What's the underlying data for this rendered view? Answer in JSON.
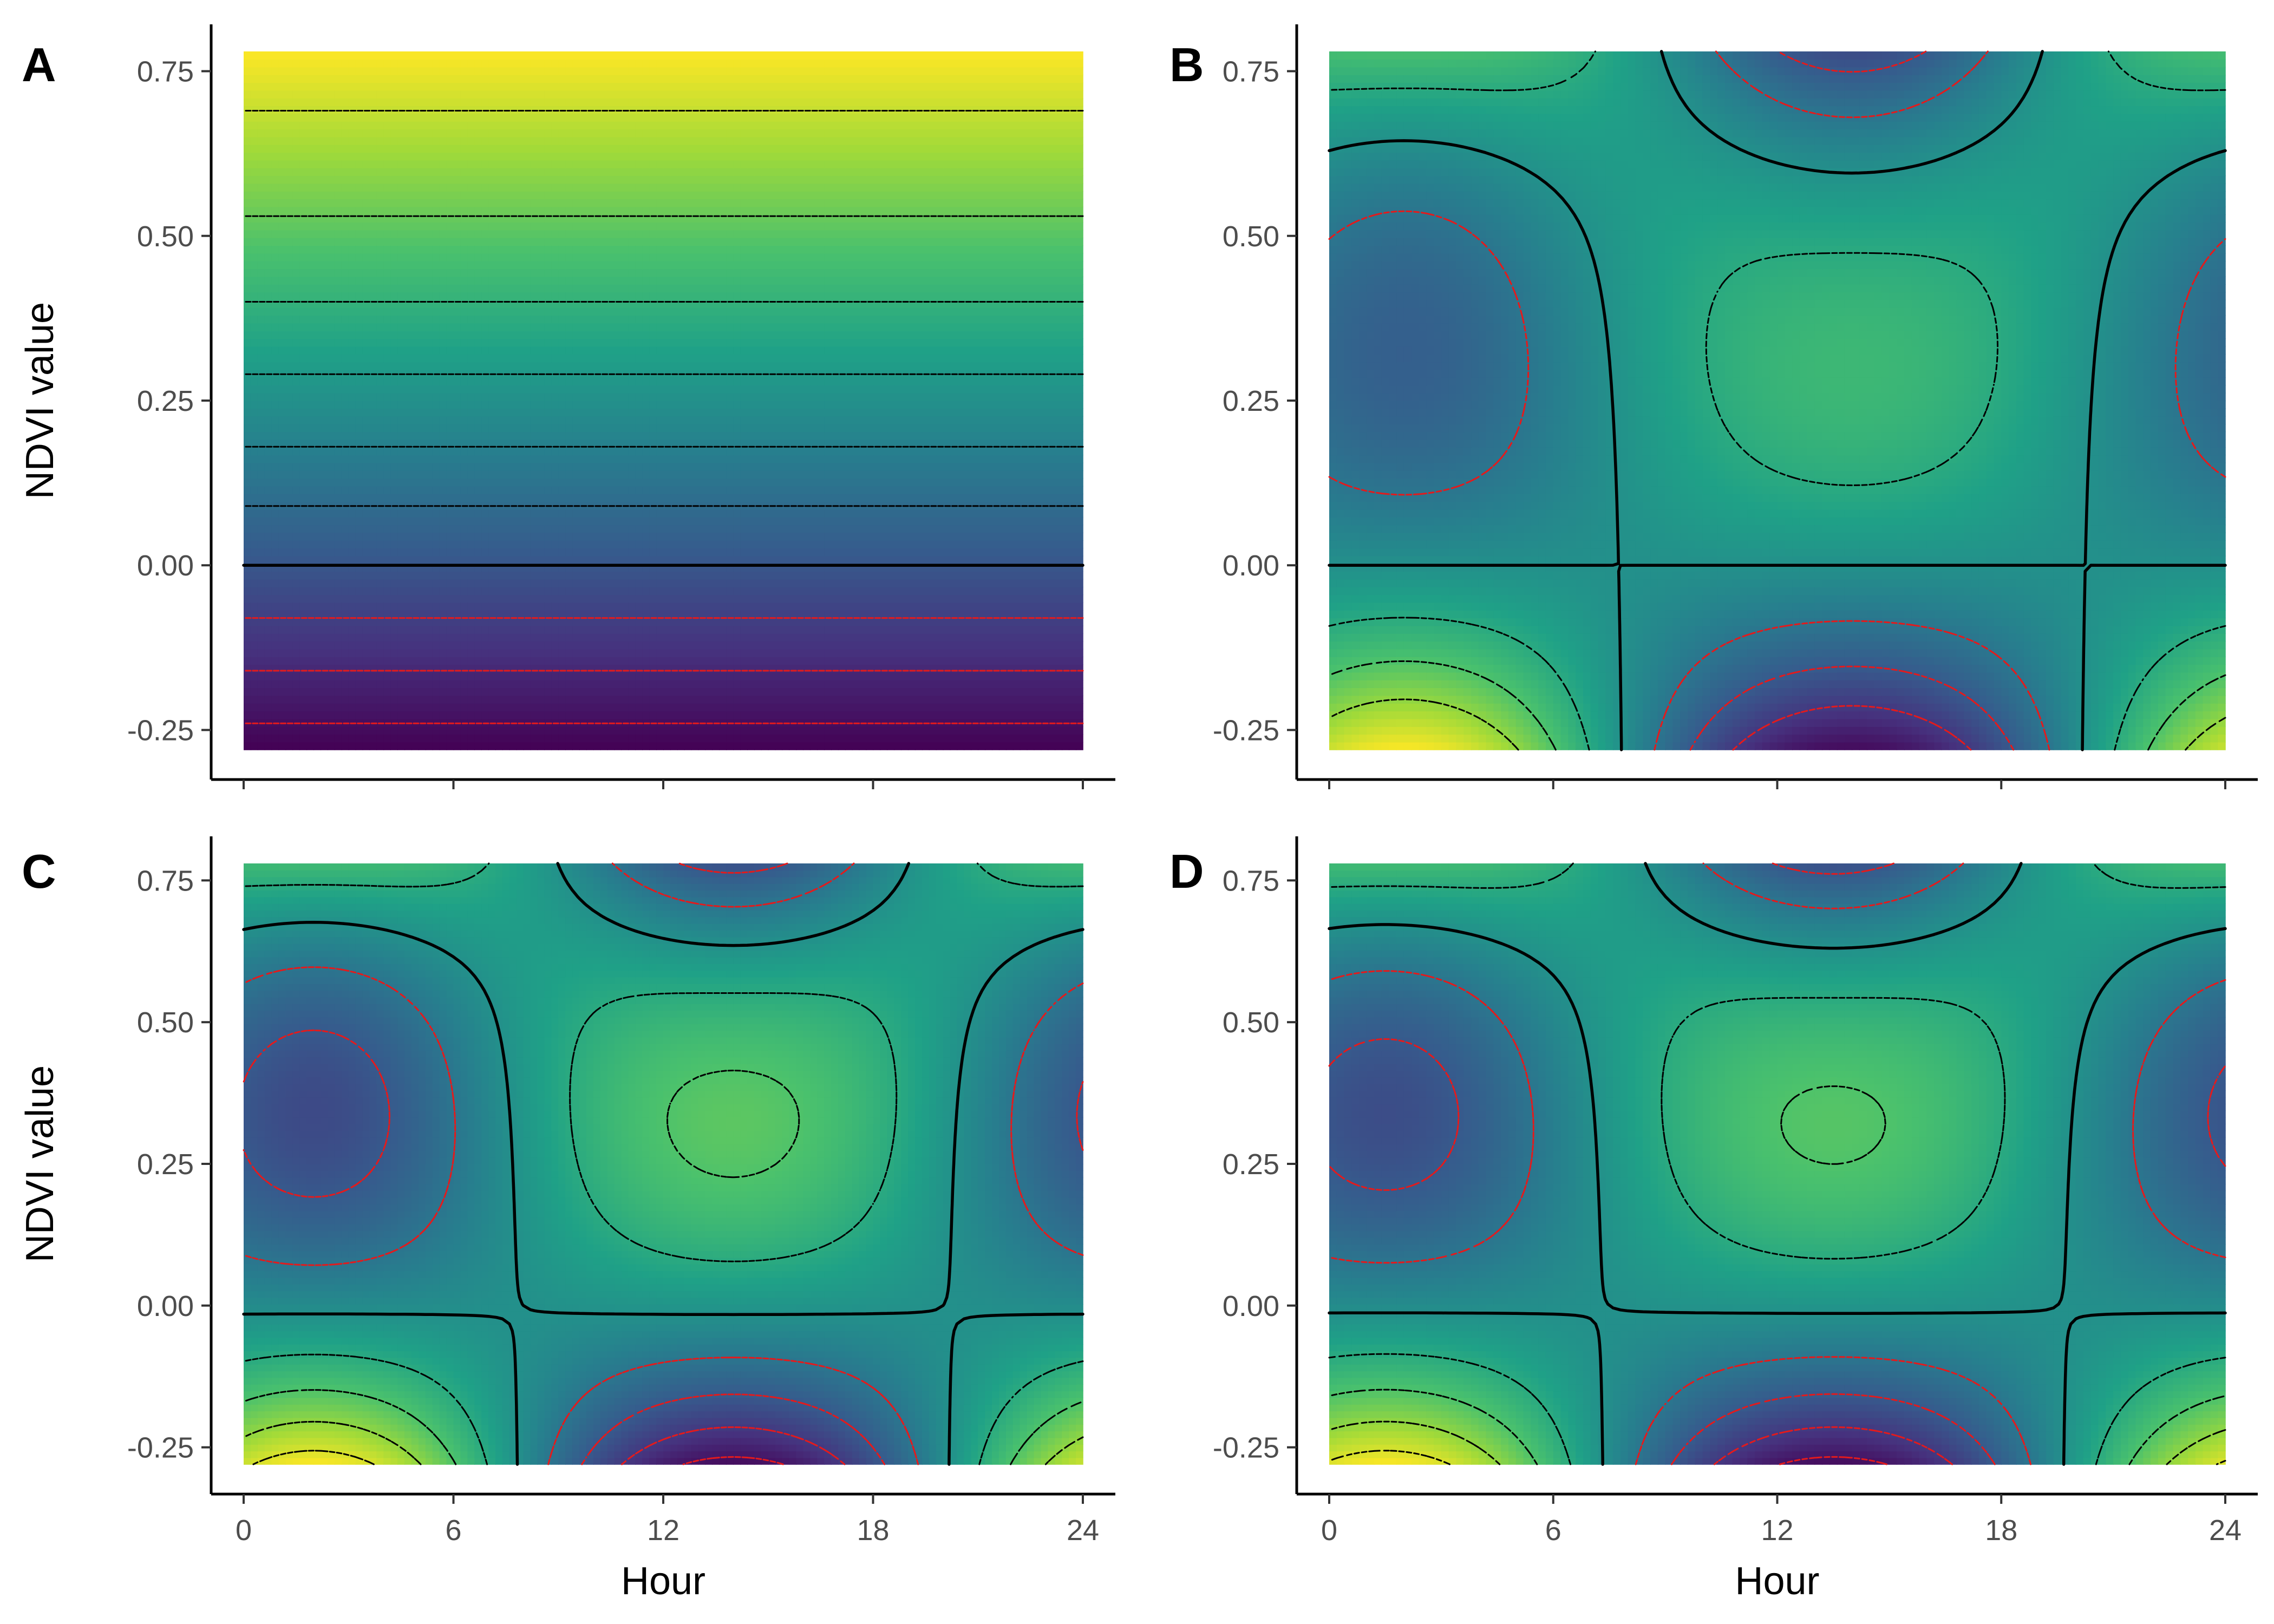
{
  "figure": {
    "layout": "2x2 grid of panels",
    "colormap": "viridis",
    "colormap_stops": [
      "#440154",
      "#46327e",
      "#365c8d",
      "#277f8e",
      "#1fa187",
      "#4ac16d",
      "#a0da39",
      "#fde725"
    ],
    "contour_colors": {
      "positive_dashed": "#000000",
      "negative_dashed": "#e41a1c",
      "zero_line": "#000000"
    },
    "shared_x_axis_title": "Hour",
    "shared_y_axis_title": "NDVI value"
  },
  "chart_data": [
    {
      "panel": "A",
      "type": "heatmap",
      "x_range": [
        0,
        24
      ],
      "y_range": [
        -0.28,
        0.78
      ],
      "x_ticks": [
        "0",
        "6",
        "12",
        "18",
        "24"
      ],
      "y_ticks": [
        "-0.25",
        "0.00",
        "0.25",
        "0.50",
        "0.75"
      ],
      "y_tick_values": [
        -0.25,
        0,
        0.25,
        0.5,
        0.75
      ],
      "x_tick_values": [
        0,
        6,
        12,
        18,
        24
      ],
      "xlabel": "",
      "ylabel": "NDVI value",
      "x_tick_labels_visible": false,
      "surface": {
        "base": 0,
        "ndvi": 1.0,
        "diurnal": 0.0,
        "interaction": 0.0
      },
      "contour_levels": [
        -0.24,
        -0.16,
        -0.08,
        0.09,
        0.18,
        0.29,
        0.4,
        0.53,
        0.69
      ],
      "zero_contour": 0
    },
    {
      "panel": "B",
      "type": "heatmap",
      "x_range": [
        0,
        24
      ],
      "y_range": [
        -0.28,
        0.78
      ],
      "x_ticks": [
        "0",
        "6",
        "12",
        "18",
        "24"
      ],
      "y_ticks": [
        "-0.25",
        "0.00",
        "0.25",
        "0.50",
        "0.75"
      ],
      "y_tick_values": [
        -0.25,
        0,
        0.25,
        0.5,
        0.75
      ],
      "x_tick_values": [
        0,
        6,
        12,
        18,
        24
      ],
      "xlabel": "",
      "ylabel": "",
      "x_tick_labels_visible": false,
      "surface": {
        "base": 0,
        "ndvi": 0.0,
        "diurnal": 0.0,
        "interaction": 1.0,
        "peak_hour": 14
      },
      "contour_levels": [
        -0.3,
        -0.2,
        -0.1,
        0.1,
        0.2,
        0.3
      ],
      "zero_contour": 0
    },
    {
      "panel": "C",
      "type": "heatmap",
      "x_range": [
        0,
        24
      ],
      "y_range": [
        -0.28,
        0.78
      ],
      "x_ticks": [
        "0",
        "6",
        "12",
        "18",
        "24"
      ],
      "y_ticks": [
        "-0.25",
        "0.00",
        "0.25",
        "0.50",
        "0.75"
      ],
      "y_tick_values": [
        -0.25,
        0,
        0.25,
        0.5,
        0.75
      ],
      "x_tick_values": [
        0,
        6,
        12,
        18,
        24
      ],
      "xlabel": "Hour",
      "ylabel": "NDVI value",
      "x_tick_labels_visible": true,
      "surface": {
        "base": 0,
        "ndvi": 0.0,
        "diurnal": 0.35,
        "interaction": 1.0,
        "peak_hour": 14
      },
      "contour_levels": [
        -0.4,
        -0.3,
        -0.2,
        -0.1,
        0.1,
        0.2,
        0.3,
        0.4
      ],
      "zero_contour": 0
    },
    {
      "panel": "D",
      "type": "heatmap",
      "x_range": [
        0,
        24
      ],
      "y_range": [
        -0.28,
        0.78
      ],
      "x_ticks": [
        "0",
        "6",
        "12",
        "18",
        "24"
      ],
      "y_ticks": [
        "-0.25",
        "0.00",
        "0.25",
        "0.50",
        "0.75"
      ],
      "y_tick_values": [
        -0.25,
        0,
        0.25,
        0.5,
        0.75
      ],
      "x_tick_values": [
        0,
        6,
        12,
        18,
        24
      ],
      "xlabel": "Hour",
      "ylabel": "",
      "x_tick_labels_visible": true,
      "surface": {
        "base": 0,
        "ndvi": 0.0,
        "diurnal": 0.3,
        "interaction": 1.0,
        "peak_hour": 13.5
      },
      "contour_levels": [
        -0.4,
        -0.3,
        -0.2,
        -0.1,
        0.1,
        0.2,
        0.3,
        0.4
      ],
      "zero_contour": 0
    }
  ]
}
